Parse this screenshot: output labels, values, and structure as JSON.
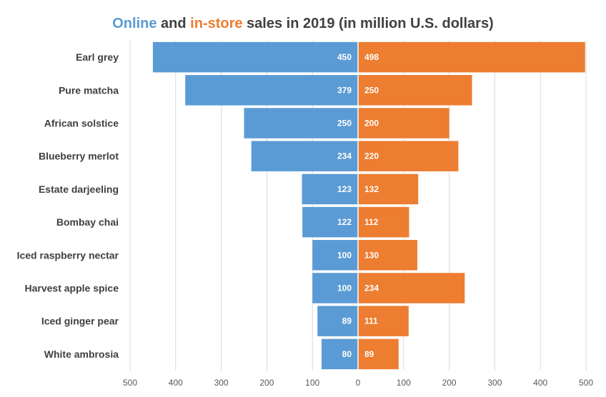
{
  "chart_data": {
    "type": "bar",
    "orientation": "horizontal",
    "layout": "diverging",
    "title_parts": [
      "Online",
      " and ",
      "in-store",
      " sales in 2019 (in million U.S. dollars)"
    ],
    "categories": [
      "Earl grey",
      "Pure matcha",
      "African solstice",
      "Blueberry merlot",
      "Estate darjeeling",
      "Bombay chai",
      "Iced raspberry nectar",
      "Harvest apple spice",
      "Iced ginger pear",
      "White ambrosia"
    ],
    "series": [
      {
        "name": "Online",
        "side": "left",
        "color": "#5B9BD5",
        "values": [
          450,
          379,
          250,
          234,
          123,
          122,
          100,
          100,
          89,
          80
        ]
      },
      {
        "name": "in-store",
        "side": "right",
        "color": "#ED7D31",
        "values": [
          498,
          250,
          200,
          220,
          132,
          112,
          130,
          234,
          111,
          89
        ]
      }
    ],
    "xlim": [
      -500,
      500
    ],
    "x_ticks": [
      -500,
      -400,
      -300,
      -200,
      -100,
      0,
      100,
      200,
      300,
      400,
      500
    ],
    "x_tick_labels": [
      "500",
      "400",
      "300",
      "200",
      "100",
      "0",
      "100",
      "200",
      "300",
      "400",
      "500"
    ],
    "xlabel": "",
    "ylabel": "",
    "grid": true,
    "legend": "none",
    "gridline_color": "#D9D9D9"
  }
}
